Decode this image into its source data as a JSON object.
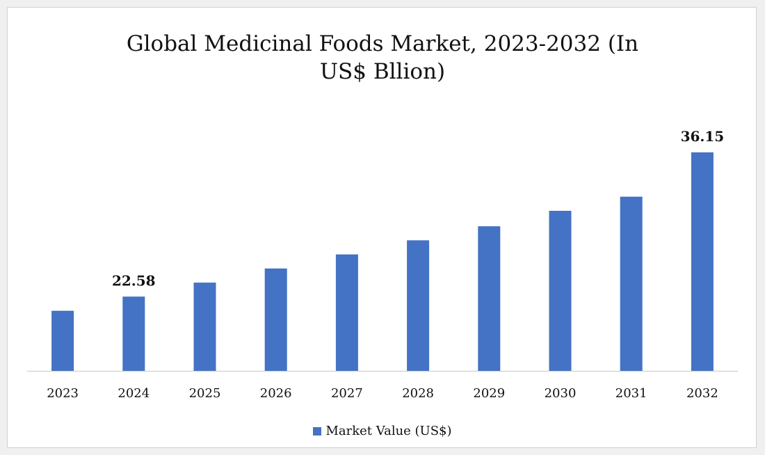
{
  "colors": {
    "bar": "#4472c4",
    "axis": "#c8c8c8",
    "text": "#111111"
  },
  "chart_data": {
    "type": "bar",
    "title_lines": [
      "Global Medicinal Foods Market, 2023-2032 (In",
      "US$ Bllion)"
    ],
    "categories": [
      "2023",
      "2024",
      "2025",
      "2026",
      "2027",
      "2028",
      "2029",
      "2030",
      "2031",
      "2032"
    ],
    "series": [
      {
        "name": "Market Value (US$)",
        "values": [
          21.25,
          22.58,
          23.9,
          25.23,
          26.55,
          27.88,
          29.2,
          30.65,
          31.98,
          36.15
        ],
        "data_labels": [
          null,
          "22.58",
          null,
          null,
          null,
          null,
          null,
          null,
          null,
          "36.15"
        ]
      }
    ],
    "ylim": [
      15.6,
      36.15
    ],
    "grid": false,
    "legend_position": "bottom"
  }
}
